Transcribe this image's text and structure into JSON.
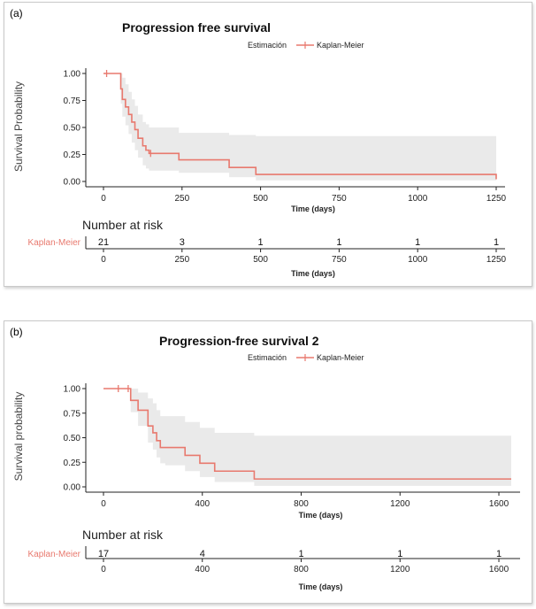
{
  "chart_data": [
    {
      "type": "line",
      "panel_label": "(a)",
      "title": "Progression free survival",
      "legend_title": "Estimación",
      "legend_entry": "Kaplan-Meier",
      "xlabel": "Time (days)",
      "ylabel": "Survival Probability",
      "xlim": [
        0,
        1250
      ],
      "ylim": [
        0,
        1
      ],
      "xticks": [
        0,
        250,
        500,
        750,
        1000,
        1250
      ],
      "yticks": [
        "0.00",
        "0.25",
        "0.50",
        "0.75",
        "1.00"
      ],
      "series": [
        {
          "name": "Kaplan-Meier",
          "x": [
            0,
            55,
            60,
            70,
            80,
            90,
            100,
            110,
            125,
            135,
            145,
            240,
            400,
            485,
            1250
          ],
          "y": [
            1.0,
            0.857,
            0.76,
            0.69,
            0.62,
            0.55,
            0.48,
            0.4,
            0.33,
            0.29,
            0.26,
            0.2,
            0.13,
            0.065,
            0.02
          ],
          "lower": [
            1.0,
            0.72,
            0.6,
            0.52,
            0.44,
            0.36,
            0.29,
            0.22,
            0.15,
            0.12,
            0.1,
            0.08,
            0.04,
            0.01,
            0.0
          ],
          "upper": [
            1.0,
            1.0,
            0.96,
            0.9,
            0.83,
            0.76,
            0.7,
            0.62,
            0.55,
            0.53,
            0.5,
            0.45,
            0.43,
            0.42,
            0.42
          ],
          "censored": [
            {
              "x": 10,
              "y": 1.0
            },
            {
              "x": 150,
              "y": 0.26
            }
          ]
        }
      ],
      "risk_table": {
        "title": "Number at risk",
        "row_label": "Kaplan-Meier",
        "times": [
          0,
          250,
          500,
          750,
          1000,
          1250
        ],
        "counts": [
          "21",
          "3",
          "1",
          "1",
          "1",
          "1"
        ],
        "xlabel": "Time (days)"
      },
      "grid": false,
      "legend_position": "top-right",
      "color": "#e8796e"
    },
    {
      "type": "line",
      "panel_label": "(b)",
      "title": "Progression-free survival 2",
      "legend_title": "Estimación",
      "legend_entry": "Kaplan-Meier",
      "xlabel": "Time (days)",
      "ylabel": "Survival probability",
      "xlim": [
        0,
        1650
      ],
      "ylim": [
        0,
        1
      ],
      "xticks": [
        0,
        400,
        800,
        1200,
        1600
      ],
      "yticks": [
        "0.00",
        "0.25",
        "0.50",
        "0.75",
        "1.00"
      ],
      "series": [
        {
          "name": "Kaplan-Meier",
          "x": [
            0,
            110,
            140,
            180,
            200,
            215,
            230,
            250,
            330,
            390,
            450,
            610,
            1650
          ],
          "y": [
            1.0,
            0.88,
            0.78,
            0.62,
            0.55,
            0.47,
            0.4,
            0.4,
            0.32,
            0.24,
            0.16,
            0.08,
            0.08
          ],
          "lower": [
            1.0,
            0.76,
            0.62,
            0.45,
            0.38,
            0.3,
            0.24,
            0.22,
            0.16,
            0.1,
            0.05,
            0.01,
            0.01
          ],
          "upper": [
            1.0,
            1.0,
            0.96,
            0.9,
            0.85,
            0.78,
            0.72,
            0.72,
            0.66,
            0.6,
            0.55,
            0.52,
            0.52
          ],
          "censored": [
            {
              "x": 60,
              "y": 1.0
            },
            {
              "x": 100,
              "y": 1.0
            }
          ]
        }
      ],
      "risk_table": {
        "title": "Number at risk",
        "row_label": "Kaplan-Meier",
        "times": [
          0,
          400,
          800,
          1200,
          1600
        ],
        "counts": [
          "17",
          "4",
          "1",
          "1",
          "1"
        ],
        "xlabel": "Time (days)"
      },
      "grid": false,
      "legend_position": "top-right",
      "color": "#e8796e"
    }
  ]
}
